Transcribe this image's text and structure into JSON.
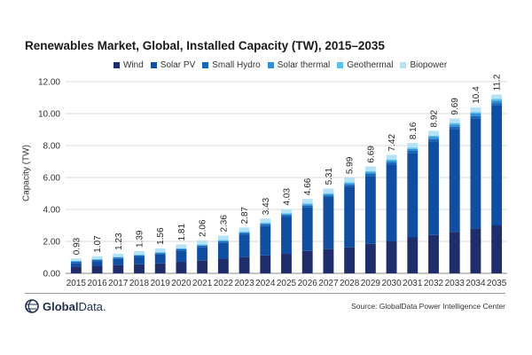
{
  "chart_data": {
    "type": "bar",
    "stacked": true,
    "title": "Renewables Market, Global, Installed Capacity (TW), 2015–2035",
    "ylabel": "Capacity (TW)",
    "xlabel": "",
    "ylim": [
      0,
      12
    ],
    "yticks": [
      "0.00",
      "2.00",
      "4.00",
      "6.00",
      "8.00",
      "10.00",
      "12.00"
    ],
    "grid": true,
    "legend_position": "top",
    "categories": [
      "2015",
      "2016",
      "2017",
      "2018",
      "2019",
      "2020",
      "2021",
      "2022",
      "2023",
      "2024",
      "2025",
      "2026",
      "2027",
      "2028",
      "2029",
      "2030",
      "2031",
      "2032",
      "2033",
      "2034",
      "2035"
    ],
    "totals": [
      0.93,
      1.07,
      1.23,
      1.39,
      1.56,
      1.81,
      2.06,
      2.36,
      2.87,
      3.43,
      4.03,
      4.66,
      5.31,
      5.99,
      6.69,
      7.42,
      8.16,
      8.92,
      9.69,
      10.4,
      11.2
    ],
    "total_labels": [
      "0.93",
      "1.07",
      "1.23",
      "1.39",
      "1.56",
      "1.81",
      "2.06",
      "2.36",
      "2.87",
      "3.43",
      "4.03",
      "4.66",
      "5.31",
      "5.99",
      "6.69",
      "7.42",
      "8.16",
      "8.92",
      "9.69",
      "10.4",
      "11.2"
    ],
    "series": [
      {
        "name": "Wind",
        "color": "#1f2d6b",
        "values": [
          0.42,
          0.47,
          0.52,
          0.57,
          0.62,
          0.72,
          0.82,
          0.92,
          1.02,
          1.12,
          1.22,
          1.4,
          1.52,
          1.62,
          1.85,
          2.0,
          2.25,
          2.4,
          2.6,
          2.8,
          3.0
        ]
      },
      {
        "name": "Solar PV",
        "color": "#0f4ea1",
        "values": [
          0.23,
          0.3,
          0.38,
          0.46,
          0.55,
          0.69,
          0.81,
          0.98,
          1.4,
          1.84,
          2.31,
          2.73,
          3.23,
          3.8,
          4.25,
          4.81,
          5.29,
          5.87,
          6.44,
          6.91,
          7.52
        ]
      },
      {
        "name": "Small Hydro",
        "color": "#1566b8",
        "values": [
          0.08,
          0.08,
          0.09,
          0.09,
          0.09,
          0.09,
          0.1,
          0.1,
          0.1,
          0.11,
          0.11,
          0.11,
          0.12,
          0.12,
          0.12,
          0.13,
          0.13,
          0.13,
          0.14,
          0.14,
          0.14
        ]
      },
      {
        "name": "Solar thermal",
        "color": "#2f8fd8",
        "values": [
          0.02,
          0.02,
          0.02,
          0.03,
          0.03,
          0.03,
          0.04,
          0.04,
          0.05,
          0.06,
          0.07,
          0.08,
          0.08,
          0.09,
          0.1,
          0.11,
          0.12,
          0.13,
          0.14,
          0.15,
          0.16
        ]
      },
      {
        "name": "Geothermal",
        "color": "#56c1ec",
        "values": [
          0.03,
          0.03,
          0.03,
          0.03,
          0.04,
          0.04,
          0.04,
          0.05,
          0.05,
          0.05,
          0.06,
          0.06,
          0.07,
          0.07,
          0.08,
          0.08,
          0.08,
          0.09,
          0.09,
          0.1,
          0.1
        ]
      },
      {
        "name": "Biopower",
        "color": "#b4e2f6",
        "values": [
          0.15,
          0.17,
          0.19,
          0.21,
          0.23,
          0.24,
          0.25,
          0.27,
          0.25,
          0.25,
          0.26,
          0.28,
          0.29,
          0.29,
          0.29,
          0.29,
          0.29,
          0.3,
          0.28,
          0.3,
          0.28
        ]
      }
    ]
  },
  "footer": {
    "logo_text_bold": "Global",
    "logo_text_rest": "Data.",
    "logo_icon": "globaldata-globe-icon",
    "source": "Source: GlobalData Power Intelligence Center"
  }
}
